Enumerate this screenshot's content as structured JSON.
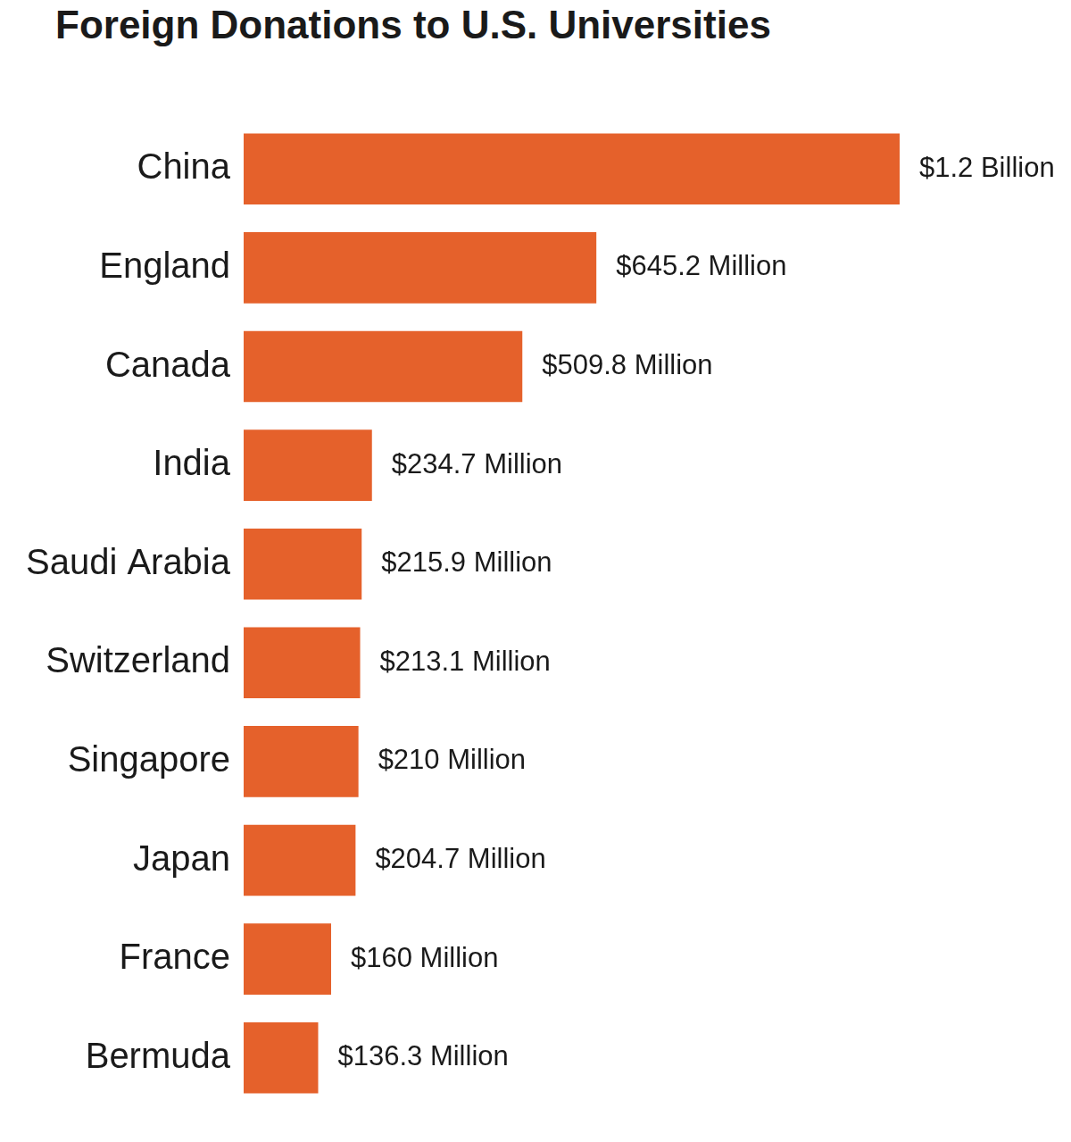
{
  "chart_data": {
    "type": "bar",
    "title": "Foreign Donations to U.S. Universities",
    "orientation": "horizontal",
    "categories": [
      "China",
      "England",
      "Canada",
      "India",
      "Saudi Arabia",
      "Switzerland",
      "Singapore",
      "Japan",
      "France",
      "Bermuda"
    ],
    "values": [
      1200000000,
      645200000,
      509800000,
      234700000,
      215900000,
      213100000,
      210000000,
      204700000,
      160000000,
      136300000
    ],
    "value_labels": [
      "$1.2 Billion",
      "$645.2 Million",
      "$509.8 Million",
      "$234.7 Million",
      "$215.9 Million",
      "$213.1 Million",
      "$210 Million",
      "$204.7 Million",
      "$160 Million",
      "$136.3 Million"
    ],
    "color": "#e5612b",
    "data_labels": true,
    "grid": false,
    "tick_labels": "y"
  }
}
